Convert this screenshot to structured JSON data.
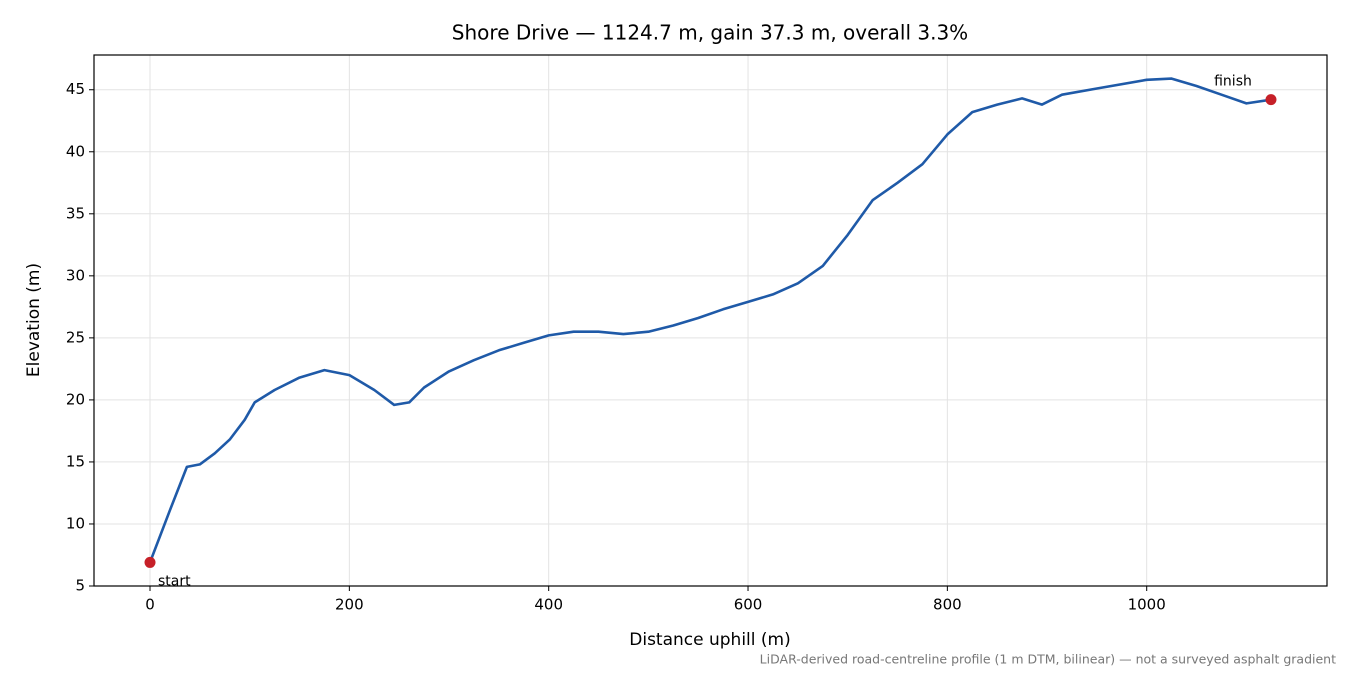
{
  "chart_data": {
    "type": "line",
    "title": "Shore Drive — 1124.7 m, gain 37.3 m, overall 3.3%",
    "x_label": "Distance uphill (m)",
    "y_label": "Elevation (m)",
    "note": "LiDAR-derived road-centreline profile (1 m DTM, bilinear) — not a surveyed asphalt gradient",
    "annotations": [
      "start",
      "finish"
    ],
    "x": [
      0,
      20,
      37,
      50,
      65,
      80,
      95,
      105,
      125,
      150,
      175,
      200,
      225,
      245,
      260,
      275,
      300,
      325,
      350,
      375,
      400,
      425,
      450,
      475,
      500,
      525,
      550,
      575,
      600,
      625,
      650,
      675,
      700,
      725,
      750,
      775,
      800,
      825,
      850,
      875,
      895,
      915,
      950,
      1000,
      1025,
      1050,
      1075,
      1100,
      1124.7
    ],
    "values": [
      6.9,
      11.1,
      14.6,
      14.8,
      15.7,
      16.8,
      18.4,
      19.8,
      20.8,
      21.8,
      22.4,
      22.0,
      20.8,
      19.6,
      19.8,
      21.0,
      22.3,
      23.2,
      24.0,
      24.6,
      25.2,
      25.5,
      25.5,
      25.3,
      25.5,
      26.0,
      26.6,
      27.3,
      27.9,
      28.5,
      29.4,
      30.8,
      33.3,
      36.1,
      37.5,
      39.0,
      41.4,
      43.2,
      43.8,
      44.3,
      43.8,
      44.6,
      45.1,
      45.8,
      45.9,
      45.3,
      44.6,
      43.9,
      44.2
    ],
    "color": "#1f5aa8",
    "marker_color": "#c62028",
    "xlim": [
      -56.2,
      1180.9
    ],
    "ylim": [
      5,
      47.8
    ],
    "xticks": [
      0,
      200,
      400,
      600,
      800,
      1000
    ],
    "yticks": [
      5,
      10,
      15,
      20,
      25,
      30,
      35,
      40,
      45
    ],
    "grid": true
  }
}
